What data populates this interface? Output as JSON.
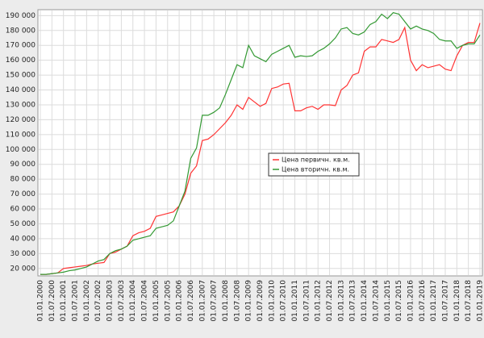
{
  "chart_data": {
    "type": "line",
    "categories": [
      "01.01.2000",
      null,
      "01.07.2000",
      null,
      "01.01.2001",
      null,
      "01.07.2001",
      null,
      "01.01.2002",
      null,
      "01.07.2002",
      null,
      "01.01.2003",
      null,
      "01.07.2003",
      null,
      "01.01.2004",
      null,
      "01.07.2004",
      null,
      "01.01.2005",
      null,
      "01.07.2005",
      null,
      "01.01.2006",
      null,
      "01.07.2006",
      null,
      "01.01.2007",
      null,
      "01.07.2007",
      null,
      "01.01.2008",
      null,
      "01.07.2008",
      null,
      "01.01.2009",
      null,
      "01.07.2009",
      null,
      "01.01.2010",
      null,
      "01.07.2010",
      null,
      "01.01.2011",
      null,
      "01.07.2011",
      null,
      "01.01.2012",
      null,
      "01.07.2012",
      null,
      "01.01.2013",
      null,
      "01.07.2013",
      null,
      "01.01.2014",
      null,
      "01.07.2014",
      null,
      "01.01.2015",
      null,
      "01.07.2015",
      null,
      "01.01.2016",
      null,
      "01.07.2016",
      null,
      "01.01.2017",
      null,
      "01.07.2017",
      null,
      "01.01.2018",
      null,
      "01.07.2018",
      null,
      "01.01.2019"
    ],
    "series": [
      {
        "name": "Цена первичн. кв.м.",
        "color": "#ff3333",
        "values": [
          16000,
          16000,
          16500,
          17000,
          20000,
          20500,
          21000,
          21500,
          22000,
          23000,
          23500,
          24000,
          30000,
          31000,
          33000,
          35000,
          42000,
          44000,
          45000,
          47000,
          55000,
          56000,
          57000,
          58000,
          62000,
          70000,
          84000,
          89000,
          106000,
          107000,
          110000,
          114000,
          118000,
          123000,
          130000,
          127000,
          135000,
          132000,
          129000,
          131000,
          141000,
          142000,
          144000,
          144500,
          126000,
          126000,
          128000,
          129000,
          127000,
          130000,
          130000,
          129500,
          140000,
          143000,
          150000,
          151500,
          166000,
          169000,
          169000,
          174000,
          173000,
          172000,
          174000,
          182000,
          160000,
          153000,
          157000,
          155000,
          156000,
          157000,
          154000,
          153000,
          163000,
          170000,
          172000,
          172000,
          185000
        ]
      },
      {
        "name": "Цена вторичн. кв.м.",
        "color": "#339933",
        "values": [
          16000,
          16000,
          16500,
          17000,
          17500,
          18500,
          19000,
          20000,
          21000,
          23000,
          25000,
          26000,
          30000,
          32000,
          33000,
          35000,
          39000,
          40000,
          41000,
          42000,
          47000,
          48000,
          49000,
          52000,
          62000,
          72000,
          94000,
          101000,
          123000,
          123000,
          125000,
          128000,
          137000,
          147000,
          157000,
          155000,
          170000,
          163000,
          161000,
          159000,
          164000,
          166000,
          168000,
          170000,
          162000,
          163000,
          162500,
          163000,
          166000,
          168000,
          171000,
          175000,
          181000,
          182000,
          178000,
          177000,
          179000,
          184000,
          186000,
          191000,
          188000,
          192000,
          191000,
          186000,
          181000,
          183000,
          181000,
          180000,
          178000,
          174000,
          173000,
          173000,
          168000,
          170000,
          171000,
          171000,
          177000
        ]
      }
    ],
    "ylim": [
      15000,
      194000
    ],
    "yticks": [
      {
        "value": 20000,
        "label": "20 000"
      },
      {
        "value": 30000,
        "label": "30 000"
      },
      {
        "value": 40000,
        "label": "40 000"
      },
      {
        "value": 50000,
        "label": "50 000"
      },
      {
        "value": 60000,
        "label": "60 000"
      },
      {
        "value": 70000,
        "label": "70 000"
      },
      {
        "value": 80000,
        "label": "80 000"
      },
      {
        "value": 90000,
        "label": "90 000"
      },
      {
        "value": 100000,
        "label": "100 000"
      },
      {
        "value": 110000,
        "label": "110 000"
      },
      {
        "value": 120000,
        "label": "120 000"
      },
      {
        "value": 130000,
        "label": "130 000"
      },
      {
        "value": 140000,
        "label": "140 000"
      },
      {
        "value": 150000,
        "label": "150 000"
      },
      {
        "value": 160000,
        "label": "160 000"
      },
      {
        "value": 170000,
        "label": "170 000"
      },
      {
        "value": 180000,
        "label": "180 000"
      },
      {
        "value": 190000,
        "label": "190 000"
      }
    ],
    "grid": true,
    "legend": "center"
  }
}
